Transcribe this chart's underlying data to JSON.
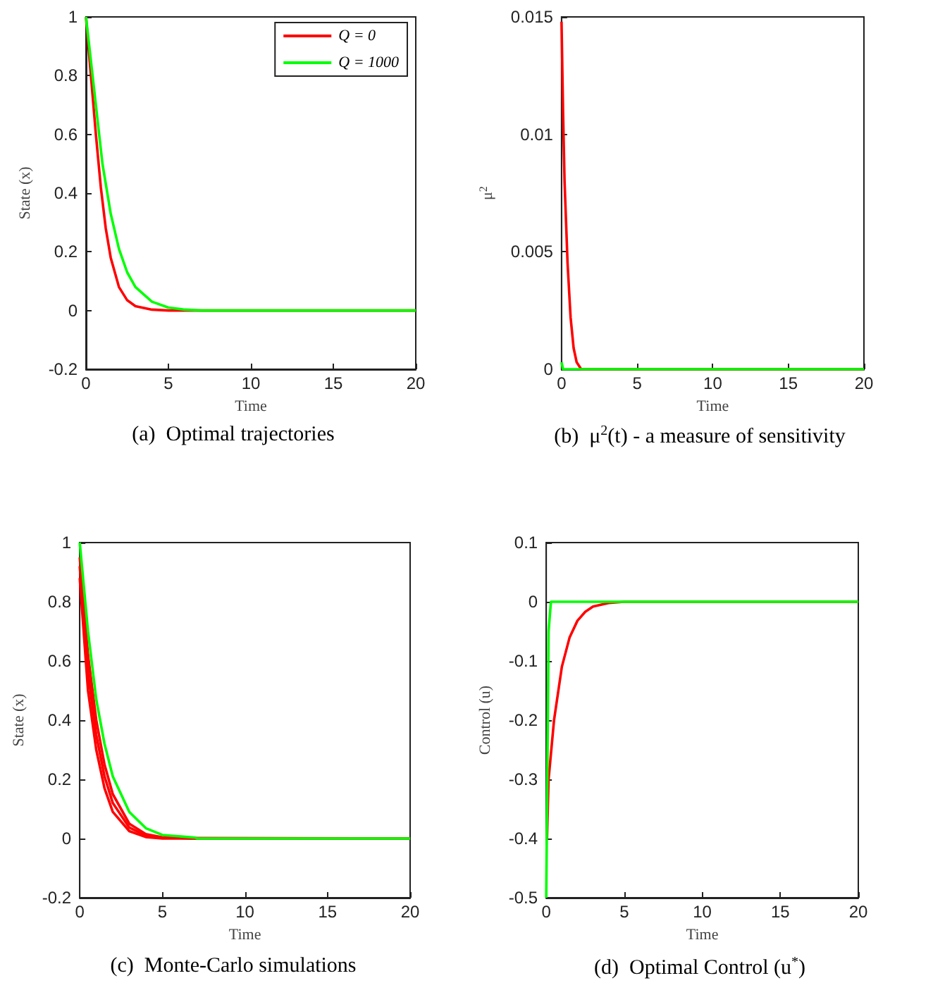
{
  "chart_data": [
    {
      "type": "line",
      "title": "(a)  Optimal trajectories",
      "xlabel": "Time",
      "ylabel": "State (x)",
      "xlim": [
        0,
        20
      ],
      "xticks": [
        0,
        5,
        10,
        15,
        20
      ],
      "ylim": [
        -0.2,
        1
      ],
      "yticks": [
        -0.2,
        0,
        0.2,
        0.4,
        0.6,
        0.8,
        1
      ],
      "legend": "top right",
      "series": [
        {
          "name": "Q = 0",
          "color": "#ff0000",
          "x": [
            0,
            0.3,
            0.6,
            0.9,
            1.2,
            1.5,
            2,
            2.5,
            3,
            4,
            5,
            20
          ],
          "values": [
            1,
            0.8,
            0.6,
            0.42,
            0.28,
            0.18,
            0.08,
            0.035,
            0.015,
            0.003,
            0,
            0
          ]
        },
        {
          "name": "Q = 1000",
          "color": "#00ff00",
          "x": [
            0,
            0.5,
            1,
            1.5,
            2,
            2.5,
            3,
            4,
            5,
            6,
            7,
            20
          ],
          "values": [
            1,
            0.75,
            0.5,
            0.33,
            0.21,
            0.13,
            0.08,
            0.03,
            0.01,
            0.003,
            0,
            0
          ]
        }
      ]
    },
    {
      "type": "line",
      "title": "(b)  μ$^{2}$(t) - a measure of sensitivity",
      "xlabel": "Time",
      "ylabel": "μ$^{2}$",
      "xlim": [
        0,
        20
      ],
      "xticks": [
        0,
        5,
        10,
        15,
        20
      ],
      "ylim": [
        0,
        0.015
      ],
      "yticks": [
        0,
        0.005,
        0.01,
        0.015
      ],
      "series": [
        {
          "color": "#ff0000",
          "x": [
            0,
            0.1,
            0.2,
            0.4,
            0.6,
            0.8,
            1,
            1.3,
            20
          ],
          "values": [
            0.0148,
            0.011,
            0.008,
            0.0045,
            0.0022,
            0.0009,
            0.0003,
            0,
            0
          ]
        },
        {
          "color": "#00ff00",
          "x": [
            0,
            0.1,
            20
          ],
          "values": [
            0.0003,
            0,
            0
          ]
        }
      ]
    },
    {
      "type": "line",
      "title": "(c)  Monte-Carlo simulations",
      "xlabel": "Time",
      "ylabel": "State (x)",
      "xlim": [
        0,
        20
      ],
      "xticks": [
        0,
        5,
        10,
        15,
        20
      ],
      "ylim": [
        -0.2,
        1
      ],
      "yticks": [
        -0.2,
        0,
        0.2,
        0.4,
        0.6,
        0.8,
        1
      ],
      "series": [
        {
          "color": "#ff0000",
          "x": [
            0,
            0.5,
            1,
            1.5,
            2,
            3,
            4,
            5,
            20
          ],
          "values": [
            0.88,
            0.5,
            0.3,
            0.17,
            0.09,
            0.025,
            0.005,
            0,
            0
          ]
        },
        {
          "color": "#ff0000",
          "x": [
            0,
            0.5,
            1,
            1.5,
            2,
            3,
            4,
            5,
            20
          ],
          "values": [
            0.92,
            0.56,
            0.35,
            0.21,
            0.12,
            0.037,
            0.01,
            0.002,
            0
          ]
        },
        {
          "color": "#ff0000",
          "x": [
            0,
            0.5,
            1,
            1.5,
            2,
            3,
            4,
            5,
            7,
            20
          ],
          "values": [
            0.95,
            0.62,
            0.4,
            0.25,
            0.15,
            0.05,
            0.015,
            0.004,
            0,
            0
          ]
        },
        {
          "color": "#00ff00",
          "x": [
            0,
            0.5,
            1,
            1.5,
            2,
            3,
            4,
            5,
            7,
            7.1,
            20
          ],
          "values": [
            1,
            0.7,
            0.47,
            0.32,
            0.21,
            0.09,
            0.035,
            0.012,
            0.003,
            0,
            0
          ]
        }
      ]
    },
    {
      "type": "line",
      "title": "(d)  Optimal Control (u$^{*}$)",
      "xlabel": "Time",
      "ylabel": "Control (u)",
      "xlim": [
        0,
        20
      ],
      "xticks": [
        0,
        5,
        10,
        15,
        20
      ],
      "ylim": [
        -0.5,
        0.1
      ],
      "yticks": [
        -0.5,
        -0.4,
        -0.3,
        -0.2,
        -0.1,
        0,
        0.1
      ],
      "series": [
        {
          "color": "#ff0000",
          "x": [
            0.05,
            0.15,
            0.5,
            1,
            1.5,
            2,
            2.5,
            3,
            4,
            5,
            20
          ],
          "values": [
            -0.4,
            -0.3,
            -0.2,
            -0.11,
            -0.06,
            -0.032,
            -0.017,
            -0.008,
            -0.002,
            0,
            0
          ]
        },
        {
          "color": "#00ff00",
          "x": [
            0,
            0.15,
            0.3,
            20
          ],
          "values": [
            -0.5,
            -0.05,
            0,
            0
          ]
        }
      ]
    }
  ]
}
